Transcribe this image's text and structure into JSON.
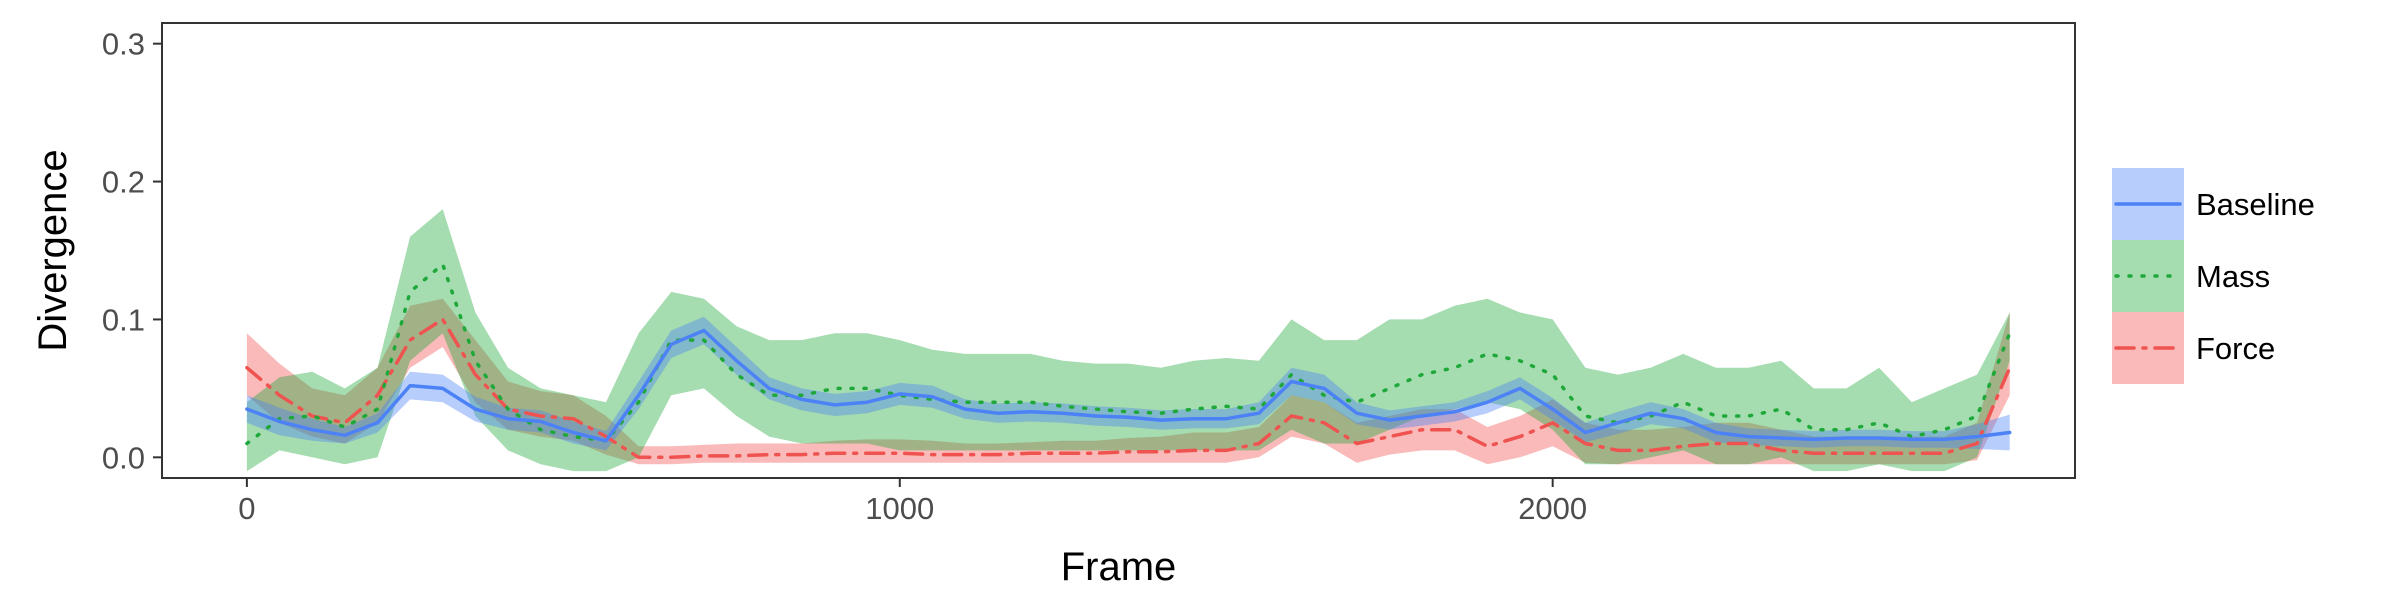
{
  "chart_data": {
    "type": "line",
    "title": "",
    "xlabel": "Frame",
    "ylabel": "Divergence",
    "xlim": [
      -130,
      2800
    ],
    "ylim": [
      -0.015,
      0.315
    ],
    "xticks": [
      0,
      1000,
      2000
    ],
    "xtick_labels": [
      "0",
      "1000",
      "2000"
    ],
    "yticks": [
      0.0,
      0.1,
      0.2,
      0.3
    ],
    "ytick_labels": [
      "0.0",
      "0.1",
      "0.2",
      "0.3"
    ],
    "grid": false,
    "legend_position": "right",
    "x": [
      0,
      50,
      100,
      150,
      200,
      250,
      300,
      350,
      400,
      450,
      500,
      550,
      600,
      650,
      700,
      750,
      800,
      850,
      900,
      950,
      1000,
      1050,
      1100,
      1150,
      1200,
      1250,
      1300,
      1350,
      1400,
      1450,
      1500,
      1550,
      1600,
      1650,
      1700,
      1750,
      1800,
      1850,
      1900,
      1950,
      2000,
      2050,
      2100,
      2150,
      2200,
      2250,
      2300,
      2350,
      2400,
      2450,
      2500,
      2550,
      2600,
      2650,
      2700
    ],
    "series": [
      {
        "name": "Baseline",
        "color": "#4c82f5",
        "fill": "#b5cdfb",
        "dash": "solid",
        "values": [
          0.035,
          0.026,
          0.02,
          0.016,
          0.025,
          0.052,
          0.05,
          0.035,
          0.028,
          0.026,
          0.018,
          0.012,
          0.045,
          0.082,
          0.092,
          0.07,
          0.05,
          0.042,
          0.038,
          0.04,
          0.046,
          0.044,
          0.035,
          0.032,
          0.033,
          0.032,
          0.03,
          0.029,
          0.027,
          0.028,
          0.028,
          0.032,
          0.055,
          0.05,
          0.032,
          0.027,
          0.03,
          0.033,
          0.04,
          0.05,
          0.035,
          0.018,
          0.025,
          0.032,
          0.028,
          0.018,
          0.015,
          0.014,
          0.013,
          0.014,
          0.014,
          0.013,
          0.013,
          0.015,
          0.018
        ],
        "lower": [
          0.025,
          0.016,
          0.012,
          0.01,
          0.018,
          0.042,
          0.04,
          0.026,
          0.02,
          0.018,
          0.01,
          0.005,
          0.035,
          0.072,
          0.082,
          0.06,
          0.042,
          0.034,
          0.03,
          0.032,
          0.038,
          0.036,
          0.028,
          0.025,
          0.026,
          0.025,
          0.023,
          0.022,
          0.02,
          0.021,
          0.021,
          0.024,
          0.045,
          0.04,
          0.024,
          0.02,
          0.023,
          0.026,
          0.032,
          0.042,
          0.027,
          0.011,
          0.017,
          0.024,
          0.021,
          0.011,
          0.009,
          0.008,
          0.007,
          0.008,
          0.008,
          0.007,
          0.007,
          0.006,
          0.005
        ],
        "upper": [
          0.045,
          0.036,
          0.028,
          0.022,
          0.032,
          0.062,
          0.06,
          0.044,
          0.036,
          0.034,
          0.026,
          0.019,
          0.055,
          0.092,
          0.102,
          0.08,
          0.058,
          0.05,
          0.046,
          0.048,
          0.054,
          0.052,
          0.042,
          0.039,
          0.04,
          0.039,
          0.037,
          0.036,
          0.034,
          0.035,
          0.035,
          0.04,
          0.065,
          0.06,
          0.04,
          0.034,
          0.037,
          0.04,
          0.048,
          0.058,
          0.043,
          0.025,
          0.033,
          0.04,
          0.035,
          0.025,
          0.021,
          0.02,
          0.019,
          0.02,
          0.02,
          0.019,
          0.019,
          0.024,
          0.031
        ]
      },
      {
        "name": "Mass",
        "color": "#1fa83a",
        "fill": "#9fdf9f",
        "dash": "dotted",
        "values": [
          0.01,
          0.028,
          0.03,
          0.022,
          0.035,
          0.12,
          0.14,
          0.07,
          0.035,
          0.02,
          0.015,
          0.012,
          0.04,
          0.085,
          0.085,
          0.06,
          0.045,
          0.045,
          0.05,
          0.05,
          0.045,
          0.042,
          0.04,
          0.04,
          0.04,
          0.037,
          0.035,
          0.033,
          0.032,
          0.035,
          0.037,
          0.035,
          0.06,
          0.045,
          0.04,
          0.05,
          0.06,
          0.065,
          0.075,
          0.07,
          0.06,
          0.03,
          0.025,
          0.03,
          0.04,
          0.03,
          0.03,
          0.035,
          0.02,
          0.02,
          0.025,
          0.015,
          0.02,
          0.03,
          0.09
        ],
        "lower": [
          -0.01,
          0.005,
          0.0,
          -0.005,
          0.0,
          0.07,
          0.09,
          0.03,
          0.005,
          -0.005,
          -0.01,
          -0.01,
          0.0,
          0.045,
          0.05,
          0.03,
          0.015,
          0.01,
          0.01,
          0.01,
          0.005,
          0.005,
          0.005,
          0.005,
          0.005,
          0.005,
          0.005,
          0.005,
          0.005,
          0.005,
          0.005,
          0.005,
          0.02,
          0.01,
          0.01,
          0.02,
          0.03,
          0.035,
          0.04,
          0.035,
          0.02,
          -0.005,
          -0.005,
          0.0,
          0.005,
          -0.005,
          -0.005,
          0.0,
          -0.01,
          -0.01,
          -0.005,
          -0.01,
          -0.01,
          0.0,
          0.07
        ],
        "upper": [
          0.04,
          0.058,
          0.062,
          0.05,
          0.065,
          0.16,
          0.18,
          0.105,
          0.065,
          0.05,
          0.045,
          0.04,
          0.09,
          0.12,
          0.115,
          0.095,
          0.085,
          0.085,
          0.09,
          0.09,
          0.085,
          0.078,
          0.075,
          0.075,
          0.075,
          0.07,
          0.068,
          0.068,
          0.065,
          0.07,
          0.072,
          0.07,
          0.1,
          0.085,
          0.085,
          0.1,
          0.1,
          0.11,
          0.115,
          0.105,
          0.1,
          0.065,
          0.06,
          0.065,
          0.075,
          0.065,
          0.065,
          0.07,
          0.05,
          0.05,
          0.065,
          0.04,
          0.05,
          0.06,
          0.105
        ]
      },
      {
        "name": "Force",
        "color": "#ef5350",
        "fill": "#f8b3b3",
        "dash": "dashdot",
        "values": [
          0.065,
          0.045,
          0.03,
          0.025,
          0.045,
          0.085,
          0.1,
          0.06,
          0.035,
          0.03,
          0.028,
          0.015,
          0.0,
          0.0,
          0.001,
          0.001,
          0.002,
          0.002,
          0.003,
          0.003,
          0.003,
          0.002,
          0.002,
          0.002,
          0.003,
          0.003,
          0.003,
          0.004,
          0.004,
          0.005,
          0.005,
          0.01,
          0.03,
          0.025,
          0.01,
          0.015,
          0.02,
          0.02,
          0.008,
          0.015,
          0.025,
          0.01,
          0.005,
          0.005,
          0.008,
          0.01,
          0.01,
          0.005,
          0.003,
          0.003,
          0.003,
          0.003,
          0.003,
          0.01,
          0.065
        ],
        "lower": [
          0.045,
          0.025,
          0.015,
          0.01,
          0.025,
          0.065,
          0.08,
          0.04,
          0.02,
          0.015,
          0.012,
          0.002,
          -0.005,
          -0.005,
          -0.004,
          -0.004,
          -0.004,
          -0.004,
          -0.004,
          -0.004,
          -0.004,
          -0.004,
          -0.004,
          -0.004,
          -0.004,
          -0.004,
          -0.004,
          -0.004,
          -0.004,
          -0.004,
          -0.004,
          0.0,
          0.015,
          0.01,
          -0.004,
          0.002,
          0.005,
          0.005,
          -0.005,
          0.0,
          0.008,
          -0.004,
          -0.005,
          -0.005,
          -0.005,
          -0.005,
          -0.005,
          -0.005,
          -0.005,
          -0.005,
          -0.005,
          -0.005,
          -0.005,
          -0.002,
          0.045
        ],
        "upper": [
          0.09,
          0.068,
          0.05,
          0.045,
          0.065,
          0.11,
          0.115,
          0.085,
          0.055,
          0.048,
          0.045,
          0.03,
          0.008,
          0.008,
          0.009,
          0.01,
          0.01,
          0.01,
          0.012,
          0.013,
          0.013,
          0.012,
          0.01,
          0.01,
          0.011,
          0.012,
          0.012,
          0.014,
          0.015,
          0.018,
          0.018,
          0.022,
          0.045,
          0.04,
          0.025,
          0.03,
          0.035,
          0.035,
          0.022,
          0.03,
          0.042,
          0.025,
          0.02,
          0.02,
          0.022,
          0.025,
          0.025,
          0.02,
          0.015,
          0.015,
          0.015,
          0.015,
          0.015,
          0.025,
          0.105
        ]
      }
    ]
  }
}
